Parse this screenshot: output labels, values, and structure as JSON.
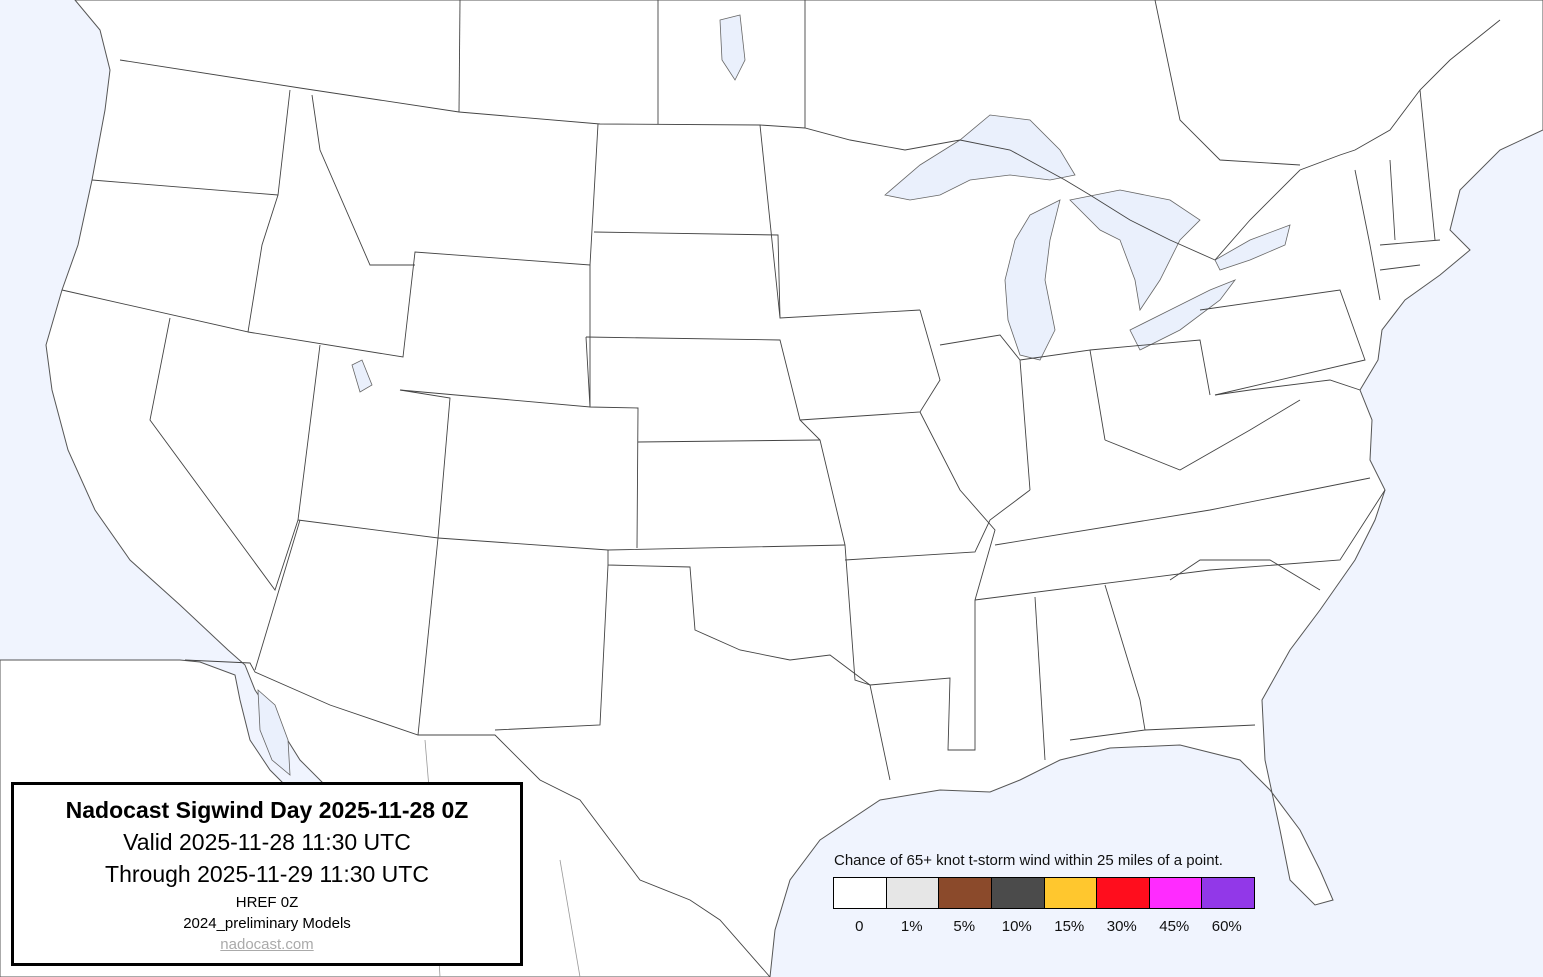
{
  "title_box": {
    "title": "Nadocast Sigwind Day 2025-11-28 0Z",
    "valid": "Valid 2025-11-28 11:30 UTC",
    "through": "Through 2025-11-29 11:30 UTC",
    "model": "HREF 0Z",
    "models_version": "2024_preliminary Models",
    "site_link": "nadocast.com"
  },
  "legend": {
    "title": "Chance of 65+ knot t-storm wind within 25 miles of a point.",
    "bins": [
      {
        "label": "0",
        "color": "#ffffff"
      },
      {
        "label": "1%",
        "color": "#e6e6e6"
      },
      {
        "label": "5%",
        "color": "#8b4a2b"
      },
      {
        "label": "10%",
        "color": "#4b4b4b"
      },
      {
        "label": "15%",
        "color": "#ffc72e"
      },
      {
        "label": "30%",
        "color": "#ff0d1d"
      },
      {
        "label": "45%",
        "color": "#ff2bff"
      },
      {
        "label": "60%",
        "color": "#9238e8"
      }
    ]
  },
  "map": {
    "water_color": "#f0f4fe",
    "land_color": "#ffffff",
    "region": "Contiguous United States",
    "probability_areas_shown": "none"
  }
}
